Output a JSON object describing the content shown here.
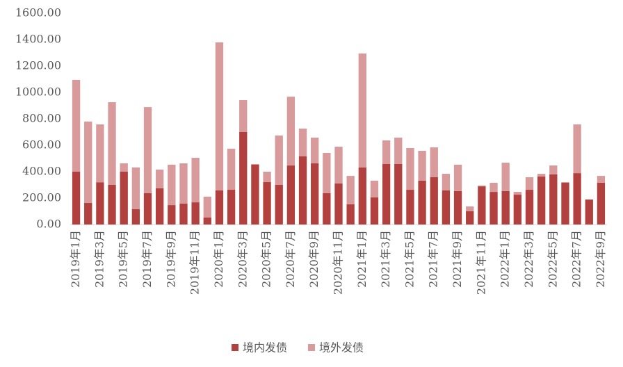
{
  "chart_data": {
    "type": "stacked-bar",
    "categories": [
      "2019年1月",
      null,
      "2019年3月",
      null,
      "2019年5月",
      null,
      "2019年7月",
      null,
      "2019年9月",
      null,
      "2019年11月",
      null,
      "2020年1月",
      null,
      "2020年3月",
      null,
      "2020年5月",
      null,
      "2020年7月",
      null,
      "2020年9月",
      null,
      "2020年11月",
      null,
      "2021年1月",
      null,
      "2021年3月",
      null,
      "2021年5月",
      null,
      "2021年7月",
      null,
      "2021年9月",
      null,
      "2021年11月",
      null,
      "2022年1月",
      null,
      "2022年3月",
      null,
      "2022年5月",
      null,
      "2022年7月",
      null,
      "2022年9月"
    ],
    "series": [
      {
        "name": "境内发债",
        "color": "#b2403f",
        "values": [
          400,
          163,
          320,
          300,
          400,
          116,
          237,
          274,
          147,
          158,
          168,
          53,
          258,
          263,
          700,
          453,
          321,
          300,
          447,
          516,
          463,
          237,
          311,
          153,
          432,
          205,
          458,
          458,
          263,
          332,
          358,
          258,
          253,
          100,
          289,
          247,
          253,
          226,
          263,
          363,
          379,
          316,
          389,
          189,
          316
        ]
      },
      {
        "name": "境外发债",
        "color": "#d89a9a",
        "values": [
          695,
          617,
          438,
          626,
          63,
          316,
          652,
          142,
          306,
          305,
          337,
          158,
          1121,
          311,
          242,
          5,
          79,
          374,
          521,
          210,
          195,
          305,
          278,
          215,
          863,
          127,
          179,
          200,
          316,
          226,
          226,
          126,
          200,
          37,
          6,
          69,
          215,
          21,
          95,
          21,
          68,
          5,
          369,
          0,
          52
        ]
      }
    ],
    "ylim": [
      0,
      1600
    ],
    "yticks": [
      {
        "value": 0,
        "label": "0.00"
      },
      {
        "value": 200,
        "label": "200.00"
      },
      {
        "value": 400,
        "label": "400.00"
      },
      {
        "value": 600,
        "label": "600.00"
      },
      {
        "value": 800,
        "label": "800.00"
      },
      {
        "value": 1000,
        "label": "1000.00"
      },
      {
        "value": 1200,
        "label": "1200.00"
      },
      {
        "value": 1400,
        "label": "1400.00"
      },
      {
        "value": 1600,
        "label": "1600.00"
      }
    ],
    "grid": false,
    "legend": "bottom"
  }
}
